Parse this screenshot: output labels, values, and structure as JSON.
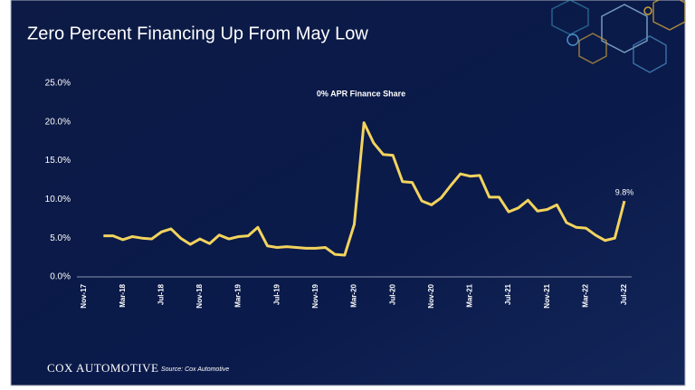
{
  "chart_data": {
    "type": "line",
    "title": "Zero Percent Financing Up From May Low",
    "subtitle": "0% APR Finance Share",
    "logo": "COX AUTOMOTIVE",
    "source": "Source: Cox Automotive",
    "categories": [
      "Nov-17",
      null,
      null,
      null,
      "Mar-18",
      null,
      null,
      null,
      "Jul-18",
      null,
      null,
      null,
      "Nov-18",
      null,
      null,
      null,
      "Mar-19",
      null,
      null,
      null,
      "Jul-19",
      null,
      null,
      null,
      "Nov-19",
      null,
      null,
      null,
      "Mar-20",
      null,
      null,
      null,
      "Jul-20",
      null,
      null,
      null,
      "Nov-20",
      null,
      null,
      null,
      "Mar-21",
      null,
      null,
      null,
      "Jul-21",
      null,
      null,
      null,
      "Nov-21",
      null,
      null,
      null,
      "Mar-22",
      null,
      null,
      null,
      "Jul-22"
    ],
    "series": [
      {
        "name": "0% APR Finance Share",
        "color": "#f2d35e",
        "values": [
          null,
          null,
          5.3,
          5.3,
          4.8,
          5.2,
          5.0,
          4.9,
          5.8,
          6.2,
          5.0,
          4.2,
          4.9,
          4.3,
          5.4,
          4.9,
          5.2,
          5.3,
          6.4,
          4.0,
          3.8,
          3.9,
          3.8,
          3.7,
          3.7,
          3.8,
          2.9,
          2.8,
          6.8,
          19.9,
          17.3,
          15.8,
          15.7,
          12.3,
          12.2,
          9.8,
          9.3,
          10.2,
          11.8,
          13.3,
          13.0,
          13.1,
          10.3,
          10.3,
          8.4,
          8.9,
          9.9,
          8.5,
          8.7,
          9.3,
          7.0,
          6.4,
          6.3,
          5.4,
          4.7,
          5.0,
          9.8
        ],
        "value_labels": [
          null,
          null,
          null,
          null,
          null,
          null,
          null,
          null,
          null,
          null,
          null,
          null,
          null,
          null,
          null,
          null,
          null,
          null,
          null,
          null,
          null,
          null,
          null,
          null,
          null,
          null,
          null,
          null,
          null,
          null,
          null,
          null,
          null,
          null,
          null,
          null,
          null,
          null,
          null,
          null,
          null,
          null,
          null,
          null,
          null,
          null,
          null,
          null,
          null,
          null,
          null,
          null,
          null,
          null,
          null,
          null,
          "9.8%"
        ]
      }
    ],
    "ylim": [
      0,
      25
    ],
    "yticks": [
      {
        "value": 0,
        "label": "0.0%"
      },
      {
        "value": 5,
        "label": "5.0%"
      },
      {
        "value": 10,
        "label": "10.0%"
      },
      {
        "value": 15,
        "label": "15.0%"
      },
      {
        "value": 20,
        "label": "20.0%"
      },
      {
        "value": 25,
        "label": "25.0%"
      }
    ]
  }
}
